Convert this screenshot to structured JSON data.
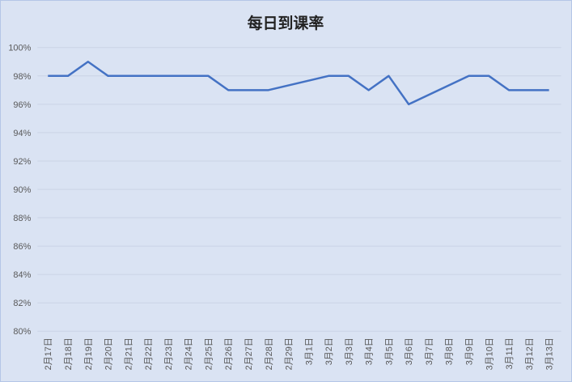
{
  "chart_data": {
    "type": "line",
    "title": "每日到课率",
    "xlabel": "",
    "ylabel": "",
    "categories": [
      "2月17日",
      "2月18日",
      "2月19日",
      "2月20日",
      "2月21日",
      "2月22日",
      "2月23日",
      "2月24日",
      "2月25日",
      "2月26日",
      "2月27日",
      "2月28日",
      "2月29日",
      "3月1日",
      "3月2日",
      "3月3日",
      "3月4日",
      "3月5日",
      "3月6日",
      "3月7日",
      "3月8日",
      "3月9日",
      "3月10日",
      "3月11日",
      "3月12日",
      "3月13日"
    ],
    "values": [
      98,
      98,
      99,
      98,
      98,
      98,
      98,
      98,
      98,
      97,
      97,
      97,
      null,
      null,
      98,
      98,
      97,
      98,
      96,
      null,
      null,
      98,
      98,
      97,
      97,
      97
    ],
    "ylim": [
      80,
      100
    ],
    "yticks": [
      "80%",
      "82%",
      "84%",
      "86%",
      "88%",
      "90%",
      "92%",
      "94%",
      "96%",
      "98%",
      "100%"
    ],
    "grid": true,
    "legend": "none",
    "line_color": "#4472c4",
    "background_color": "#dae3f3",
    "gaps": "connected"
  }
}
